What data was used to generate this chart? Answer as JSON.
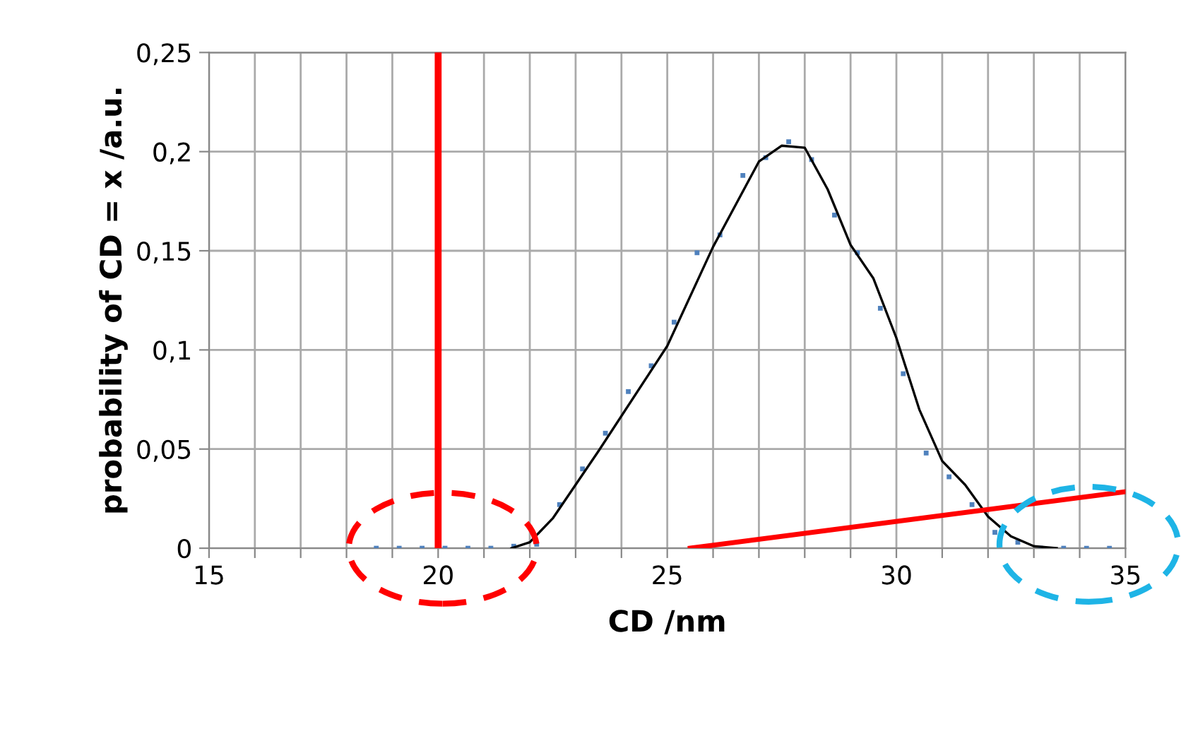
{
  "chart_data": {
    "type": "scatter",
    "xlabel": "CD /nm",
    "ylabel": "probability of CD = x /a.u.",
    "series": [
      {
        "color": "#4f81bd",
        "marker": "square",
        "x": [
          18.65,
          19.15,
          19.65,
          20.15,
          20.65,
          21.15,
          21.65,
          22.15,
          22.65,
          23.15,
          23.65,
          24.15,
          24.65,
          25.15,
          25.65,
          26.15,
          26.65,
          27.15,
          27.65,
          28.15,
          28.65,
          29.15,
          29.65,
          30.15,
          30.65,
          31.15,
          31.65,
          32.15,
          32.65,
          33.15,
          33.65,
          34.15,
          34.65
        ],
        "values": [
          0,
          0,
          0,
          0,
          0,
          0,
          0.001,
          0.002,
          0.022,
          0.04,
          0.058,
          0.079,
          0.092,
          0.114,
          0.149,
          0.158,
          0.188,
          0.197,
          0.205,
          0.196,
          0.168,
          0.149,
          0.121,
          0.088,
          0.048,
          0.036,
          0.022,
          0.008,
          0.003,
          0,
          0,
          0,
          0
        ]
      },
      {
        "type": "line",
        "color": "#000000",
        "marker": "none",
        "line_style": "solid",
        "x": [
          21.6,
          22,
          22.5,
          23.5,
          25,
          26,
          27,
          27.5,
          28,
          28.5,
          29,
          29.5,
          30,
          30.5,
          31,
          31.5,
          32,
          32.5,
          33,
          33.5
        ],
        "values": [
          0,
          0.003,
          0.015,
          0.049,
          0.102,
          0.152,
          0.195,
          0.203,
          0.202,
          0.181,
          0.153,
          0.136,
          0.106,
          0.07,
          0.044,
          0.032,
          0.016,
          0.006,
          0.001,
          0
        ]
      },
      {
        "type": "line",
        "color": "#ff0000",
        "marker": "none",
        "line_style": "solid",
        "x": [
          25.5,
          35
        ],
        "values": [
          0,
          0.0285
        ]
      }
    ],
    "ref_lines": [
      {
        "axis": "x",
        "value": 20,
        "color": "#ff0000"
      }
    ],
    "xlim": [
      15,
      35
    ],
    "xticks": [
      15,
      {
        "value": 16,
        "label": null
      },
      {
        "value": 17,
        "label": null
      },
      {
        "value": 18,
        "label": null
      },
      {
        "value": 19,
        "label": null
      },
      20,
      {
        "value": 21,
        "label": null
      },
      {
        "value": 22,
        "label": null
      },
      {
        "value": 23,
        "label": null
      },
      {
        "value": 24,
        "label": null
      },
      25,
      {
        "value": 26,
        "label": null
      },
      {
        "value": 27,
        "label": null
      },
      {
        "value": 28,
        "label": null
      },
      {
        "value": 29,
        "label": null
      },
      30,
      {
        "value": 31,
        "label": null
      },
      {
        "value": 32,
        "label": null
      },
      {
        "value": 33,
        "label": null
      },
      {
        "value": 34,
        "label": null
      },
      35
    ],
    "ylim": [
      0,
      0.25
    ],
    "yticks": [
      0,
      {
        "value": 0.05,
        "label": "0,05"
      },
      {
        "value": 0.1,
        "label": "0,1"
      },
      {
        "value": 0.15,
        "label": "0,15"
      },
      {
        "value": 0.2,
        "label": "0,2"
      },
      {
        "value": 0.25,
        "label": "0,25"
      }
    ],
    "grid": true,
    "legend": false
  }
}
